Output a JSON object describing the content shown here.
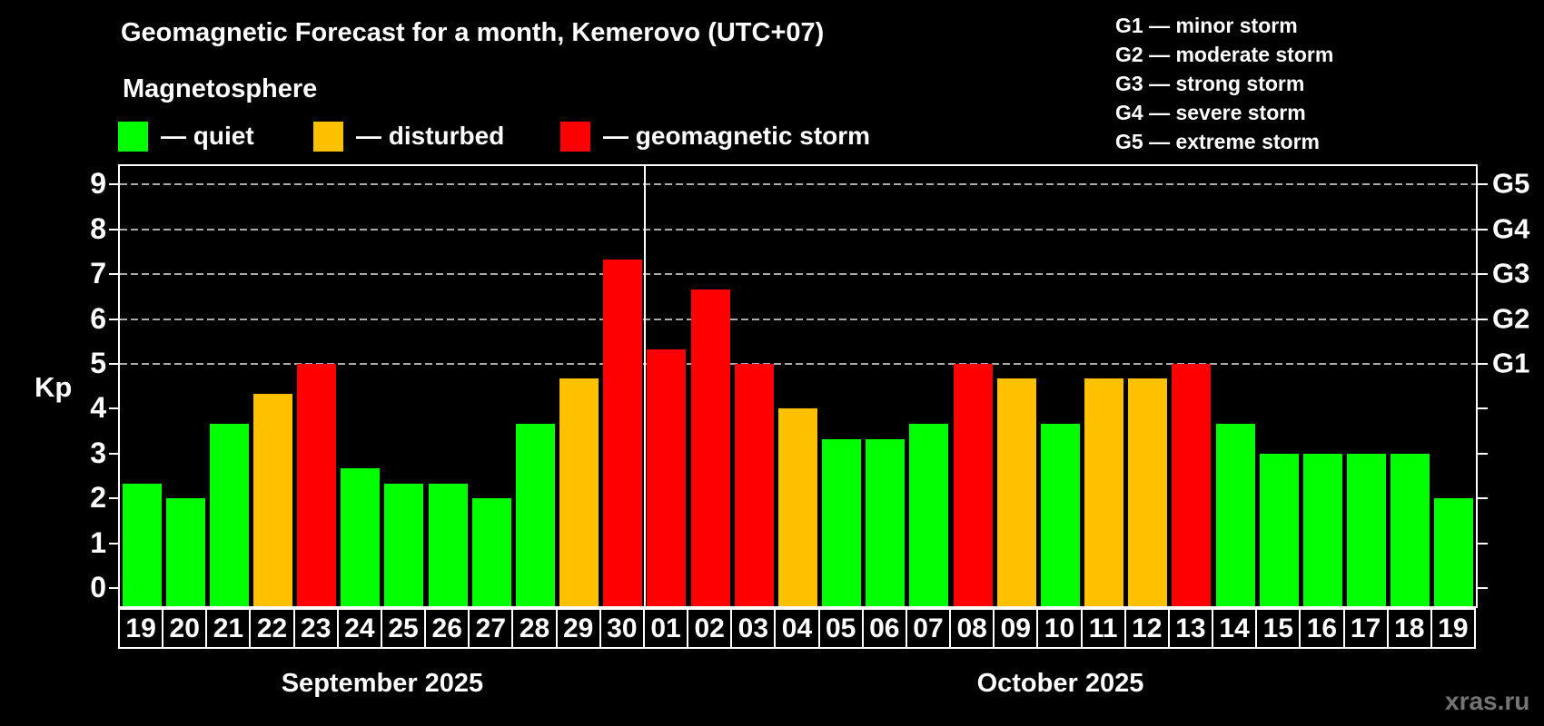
{
  "chart_data": {
    "type": "bar",
    "title": "Geomagnetic Forecast for a month, Kemerovo (UTC+07)",
    "subtitle": "Magnetosphere",
    "ylabel": "Kp",
    "ylim": [
      0,
      9
    ],
    "yticks": [
      0,
      1,
      2,
      3,
      4,
      5,
      6,
      7,
      8,
      9
    ],
    "dashed_gridlines_at": [
      5,
      6,
      7,
      8,
      9
    ],
    "grid": "horizontal dashed, Kp 5-9 only",
    "legend_position": "top-left",
    "categories": [
      "19",
      "20",
      "21",
      "22",
      "23",
      "24",
      "25",
      "26",
      "27",
      "28",
      "29",
      "30",
      "01",
      "02",
      "03",
      "04",
      "05",
      "06",
      "07",
      "08",
      "09",
      "10",
      "11",
      "12",
      "13",
      "14",
      "15",
      "16",
      "17",
      "18",
      "19"
    ],
    "values": [
      2.33,
      2.0,
      3.67,
      4.33,
      5.0,
      2.67,
      2.33,
      2.33,
      2.0,
      3.67,
      4.67,
      7.33,
      5.33,
      6.67,
      5.0,
      4.0,
      3.33,
      3.33,
      3.67,
      5.0,
      4.67,
      3.67,
      4.67,
      4.67,
      5.0,
      3.67,
      3.0,
      3.0,
      3.0,
      3.0,
      2.0
    ],
    "statuses": [
      "quiet",
      "quiet",
      "quiet",
      "disturbed",
      "storm",
      "quiet",
      "quiet",
      "quiet",
      "quiet",
      "quiet",
      "disturbed",
      "storm",
      "storm",
      "storm",
      "storm",
      "disturbed",
      "quiet",
      "quiet",
      "quiet",
      "storm",
      "disturbed",
      "quiet",
      "disturbed",
      "disturbed",
      "storm",
      "quiet",
      "quiet",
      "quiet",
      "quiet",
      "quiet",
      "quiet"
    ],
    "right_axis": {
      "labels": [
        "G1",
        "G2",
        "G3",
        "G4",
        "G5"
      ],
      "positions": [
        5,
        6,
        7,
        8,
        9
      ]
    },
    "months": [
      {
        "label": "September 2025",
        "start_index": 0,
        "count": 12
      },
      {
        "label": "October 2025",
        "start_index": 12,
        "count": 19
      }
    ],
    "month_divider_after_index": 11
  },
  "legend": {
    "items": [
      {
        "label": "— quiet",
        "status": "quiet",
        "color": "#00ff00",
        "x": 130
      },
      {
        "label": "— disturbed",
        "status": "disturbed",
        "color": "#ffc000",
        "x": 345
      },
      {
        "label": "— geomagnetic storm",
        "status": "storm",
        "color": "#ff0000",
        "x": 617
      }
    ]
  },
  "storm_scale": {
    "items": [
      "G1 — minor storm",
      "G2 — moderate storm",
      "G3 — strong storm",
      "G4 — severe storm",
      "G5 — extreme storm"
    ]
  },
  "watermark": {
    "label": "xras.ru",
    "color": "#757575"
  },
  "colors": {
    "background": "#000000",
    "text": "#ffffff",
    "frame": "#ffffff",
    "grid": "#aaaaaa",
    "quiet": "#00ff00",
    "disturbed": "#ffc000",
    "storm": "#ff0000"
  }
}
